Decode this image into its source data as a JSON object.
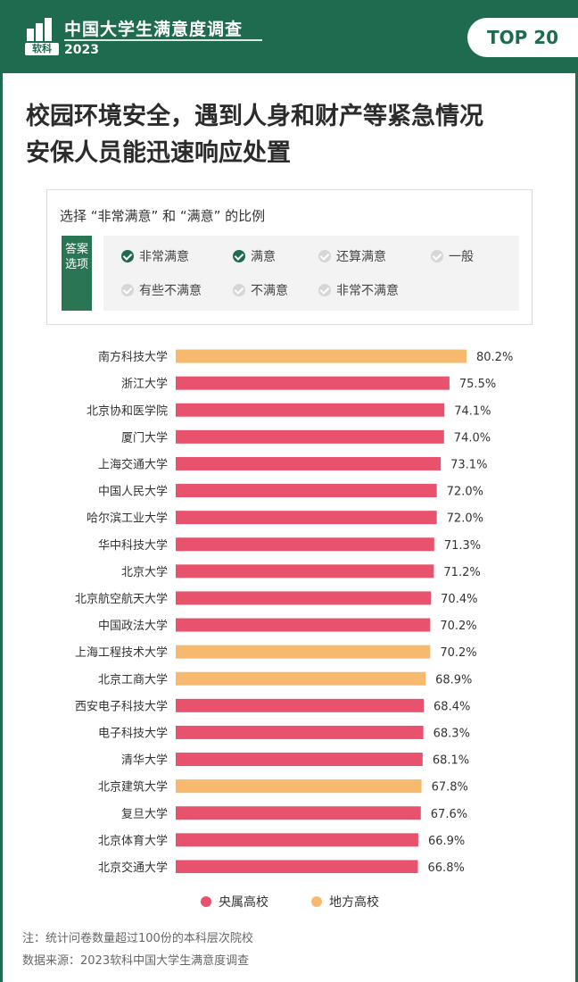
{
  "header": {
    "logo_text": "软科",
    "title": "中国大学生满意度调查",
    "year": "2023",
    "badge": "TOP 20"
  },
  "title_lines": [
    "校园环境安全，遇到人身和财产等紧急情况",
    "安保人员能迅速响应处置"
  ],
  "legend_box": {
    "title": "选择 “非常满意” 和 “满意” 的比例",
    "tag": "答案选项",
    "options": [
      {
        "label": "非常满意",
        "selected": true
      },
      {
        "label": "满意",
        "selected": true
      },
      {
        "label": "还算满意",
        "selected": false
      },
      {
        "label": "一般",
        "selected": false
      },
      {
        "label": "有些不满意",
        "selected": false
      },
      {
        "label": "不满意",
        "selected": false
      },
      {
        "label": "非常不满意",
        "selected": false
      }
    ]
  },
  "colors": {
    "central": "#e9526c",
    "local": "#f7b96e",
    "brand": "#1e6b4f"
  },
  "chart_data": {
    "type": "bar",
    "orientation": "horizontal",
    "categories": [
      "南方科技大学",
      "浙江大学",
      "北京协和医学院",
      "厦门大学",
      "上海交通大学",
      "中国人民大学",
      "哈尔滨工业大学",
      "华中科技大学",
      "北京大学",
      "北京航空航天大学",
      "中国政法大学",
      "上海工程技术大学",
      "北京工商大学",
      "西安电子科技大学",
      "电子科技大学",
      "清华大学",
      "北京建筑大学",
      "复旦大学",
      "北京体育大学",
      "北京交通大学"
    ],
    "values": [
      80.2,
      75.5,
      74.1,
      74.0,
      73.1,
      72.0,
      72.0,
      71.3,
      71.2,
      70.4,
      70.2,
      70.2,
      68.9,
      68.4,
      68.3,
      68.1,
      67.8,
      67.6,
      66.9,
      66.8
    ],
    "labels": [
      "80.2%",
      "75.5%",
      "74.1%",
      "74.0%",
      "73.1%",
      "72.0%",
      "72.0%",
      "71.3%",
      "71.2%",
      "70.4%",
      "70.2%",
      "70.2%",
      "68.9%",
      "68.4%",
      "68.3%",
      "68.1%",
      "67.8%",
      "67.6%",
      "66.9%",
      "66.8%"
    ],
    "groups": [
      "local",
      "central",
      "central",
      "central",
      "central",
      "central",
      "central",
      "central",
      "central",
      "central",
      "central",
      "local",
      "local",
      "central",
      "central",
      "central",
      "local",
      "central",
      "central",
      "central"
    ],
    "legend": [
      {
        "key": "central",
        "label": "央属高校"
      },
      {
        "key": "local",
        "label": "地方高校"
      }
    ],
    "xlim": [
      0,
      80.2
    ]
  },
  "notes": [
    "注：统计问卷数量超过100份的本科层次院校",
    "数据来源：2023软科中国大学生满意度调查"
  ]
}
